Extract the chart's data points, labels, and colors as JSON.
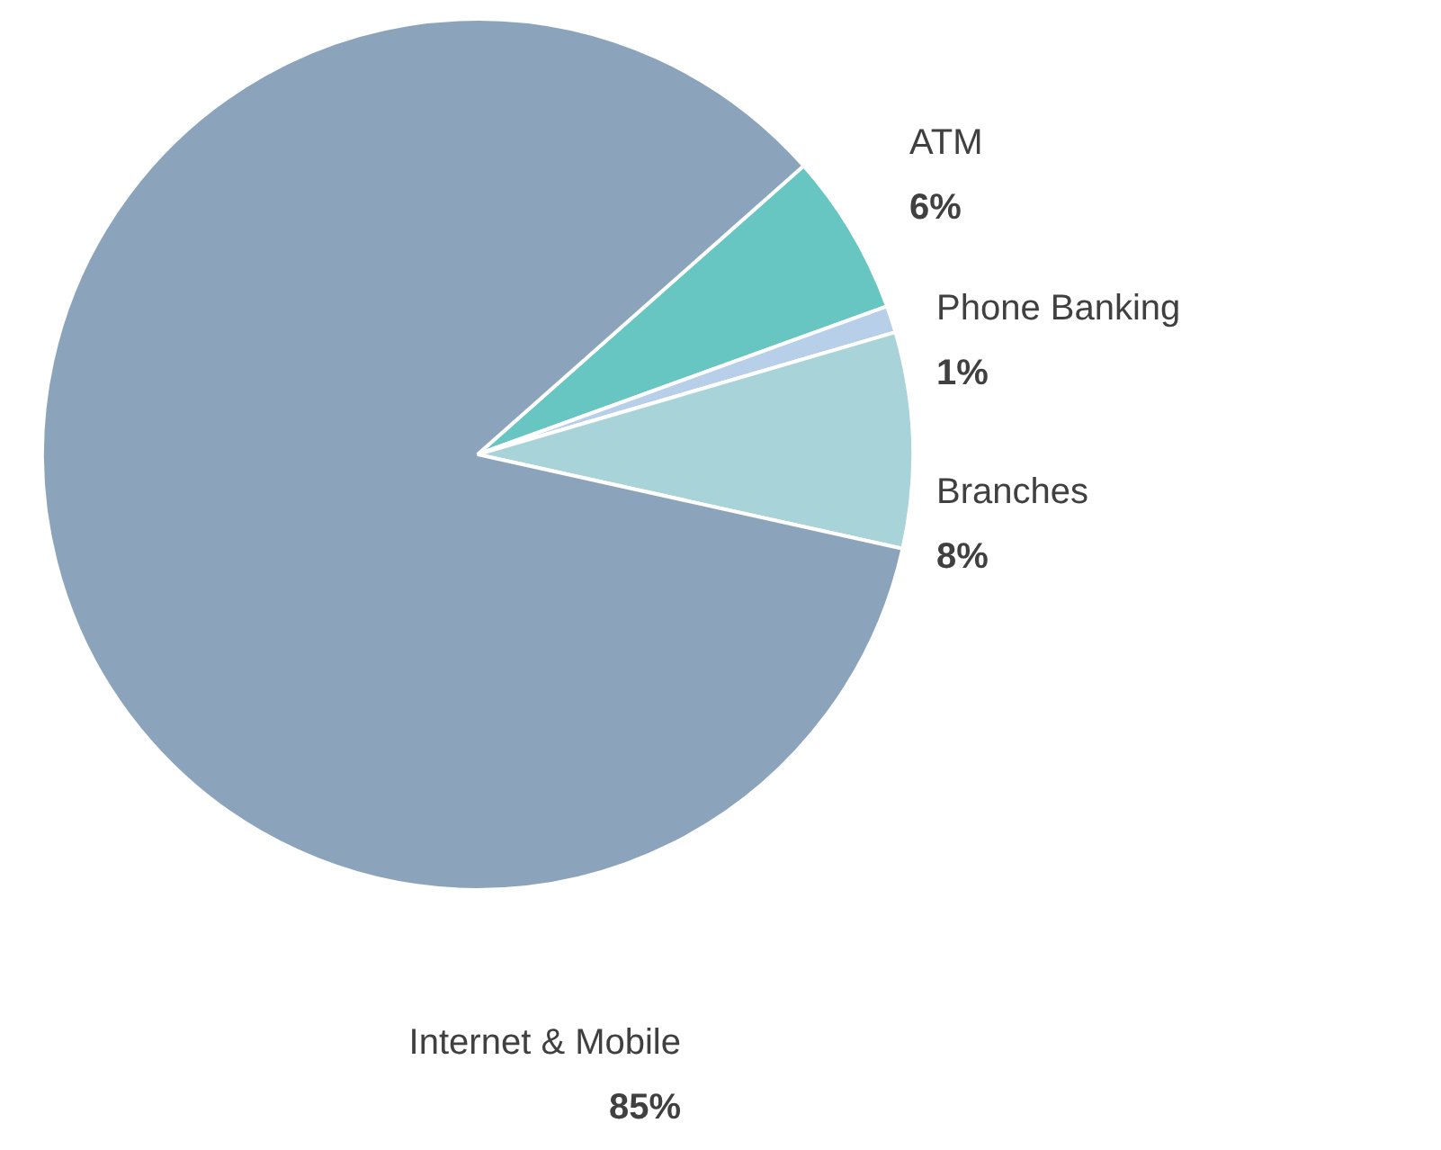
{
  "chart_data": {
    "type": "pie",
    "categories": [
      "ATM",
      "Phone Banking",
      "Branches",
      "Internet & Mobile"
    ],
    "values": [
      6,
      1,
      8,
      85
    ],
    "colors": [
      "#67c6c1",
      "#b8cfea",
      "#a8d3d8",
      "#8ba4bb"
    ],
    "value_labels": [
      "6%",
      "1%",
      "8%",
      "85%"
    ]
  }
}
